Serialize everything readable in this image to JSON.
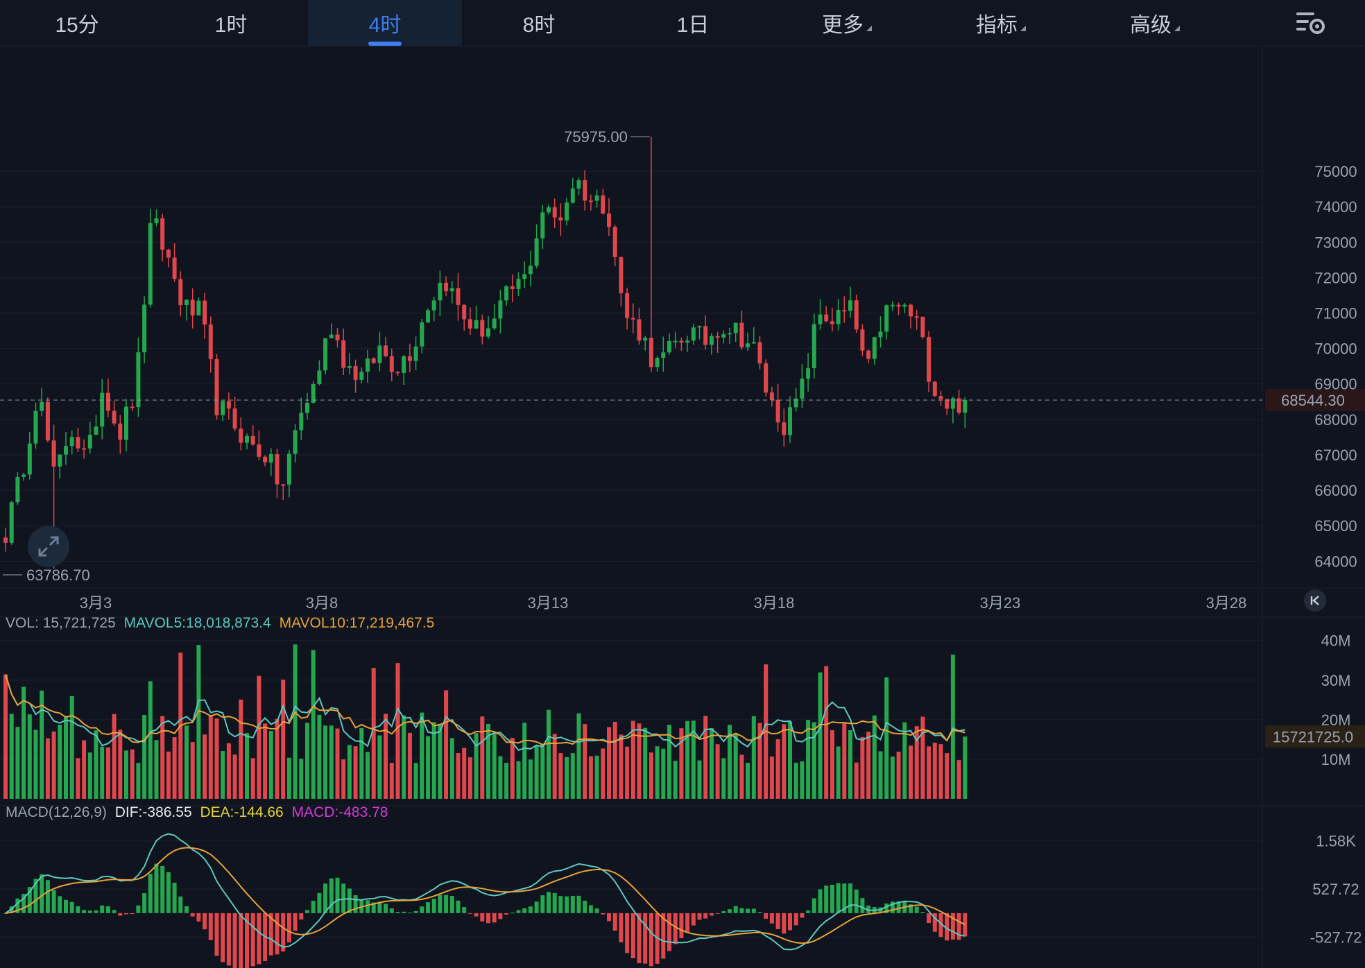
{
  "tabs": [
    {
      "label": "15分",
      "active": false
    },
    {
      "label": "1时",
      "active": false
    },
    {
      "label": "4时",
      "active": true
    },
    {
      "label": "8时",
      "active": false
    },
    {
      "label": "1日",
      "active": false
    },
    {
      "label": "更多",
      "active": false,
      "dropdown": true
    },
    {
      "label": "指标",
      "active": false,
      "dropdown": true
    },
    {
      "label": "高级",
      "active": false,
      "dropdown": true
    }
  ],
  "icons": {
    "settings": "chart-settings-icon",
    "expand": "expand-icon",
    "reset": "scroll-to-latest-icon"
  },
  "colors": {
    "up": "#25a750",
    "down": "#e0474c",
    "ma_teal": "#5ec8c0",
    "ma_orange": "#e8a23a",
    "dif": "#5ec8c0",
    "dea": "#e8a23a",
    "macd": "#d63ad6",
    "price_tag": "#e0474c",
    "vol_tag": "#e8a23a"
  },
  "chart_data": {
    "type": "candlestick",
    "interval_tab": "4时",
    "x_tick_labels": [
      "3月3",
      "3月8",
      "3月13",
      "3月18",
      "3月23",
      "3月28"
    ],
    "price_axis": {
      "ticks": [
        75000,
        74000,
        73000,
        72000,
        71000,
        70000,
        69000,
        68000,
        67000,
        66000,
        65000,
        64000
      ],
      "ylim": [
        63400,
        76800
      ]
    },
    "max_label": "75975.00",
    "min_label": "63786.70",
    "current_price": "68544.30",
    "price_keypoints": [
      64800,
      66500,
      68900,
      66300,
      67800,
      66800,
      69000,
      67600,
      68800,
      73700,
      72500,
      71100,
      71000,
      68400,
      67900,
      67300,
      67000,
      66000,
      68000,
      69000,
      70700,
      69500,
      69200,
      70000,
      69500,
      70000,
      71300,
      72000,
      71000,
      70500,
      70700,
      71600,
      72000,
      73900,
      73600,
      74800,
      74200,
      74100,
      71000,
      70500,
      69500,
      70000,
      70500,
      70200,
      70700,
      70500,
      70000,
      68500,
      67800,
      68900,
      71000,
      70800,
      71100,
      69300,
      71000,
      71200,
      70800,
      69000,
      68400,
      68540
    ],
    "volume_panel": {
      "legend": {
        "vol": "VOL: 15,721,725",
        "mavol5": "MAVOL5:18,018,873.4",
        "mavol10": "MAVOL10:17,219,467.5"
      },
      "axis_ticks": [
        "40M",
        "30M",
        "20M",
        "10M"
      ],
      "axis_values": [
        40000000,
        30000000,
        20000000,
        10000000
      ],
      "ylim": [
        0,
        41000000
      ],
      "current_tag": "15721725.0",
      "current_value": 15721725
    },
    "macd_panel": {
      "legend": {
        "title": "MACD(12,26,9)",
        "dif": "DIF:-386.55",
        "dea": "DEA:-144.66",
        "macd": "MACD:-483.78"
      },
      "axis_ticks": [
        "1.58K",
        "527.72",
        "-527.72"
      ],
      "axis_values": [
        1580,
        527.72,
        -527.72
      ],
      "ylim": [
        -1200,
        2000
      ]
    }
  }
}
